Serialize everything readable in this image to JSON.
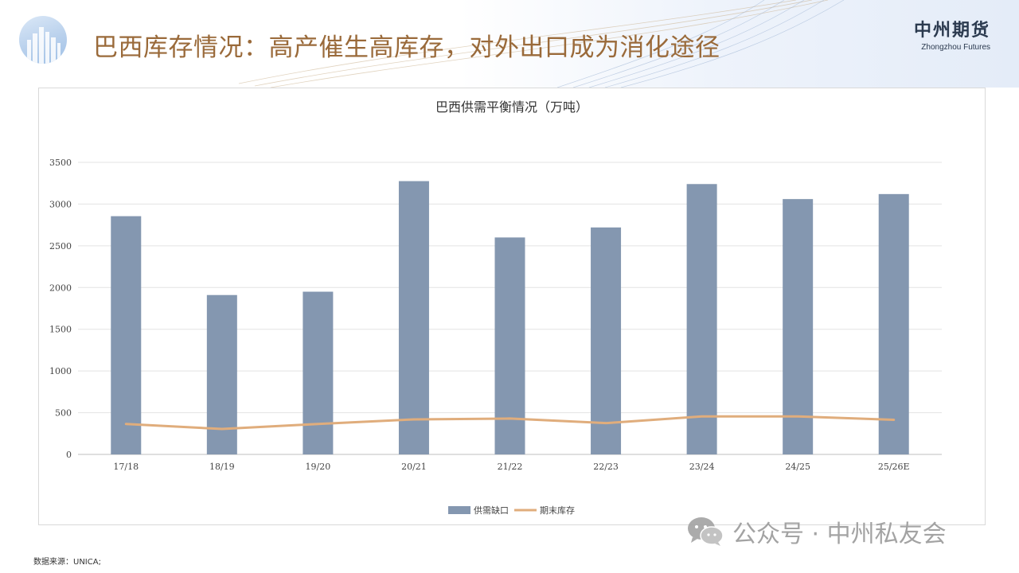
{
  "page": {
    "title": "巴西库存情况：高产催生高库存，对外出口成为消化途径",
    "brand_cn": "中州期货",
    "brand_en": "Zhongzhou Futures",
    "source": "数据来源：UNICA;",
    "watermark": "公众号 · 中州私友会",
    "watermark_icon": "wechat-icon"
  },
  "chart_data": {
    "type": "bar",
    "title": "巴西供需平衡情况（万吨）",
    "categories": [
      "17/18",
      "18/19",
      "19/20",
      "20/21",
      "21/22",
      "22/23",
      "23/24",
      "24/25",
      "25/26E"
    ],
    "series": [
      {
        "name": "供需缺口",
        "type": "bar",
        "color": "#8497b0",
        "values": [
          2855,
          1910,
          1950,
          3275,
          2600,
          2720,
          3240,
          3060,
          3120
        ]
      },
      {
        "name": "期末库存",
        "type": "line",
        "color": "#e0ad7c",
        "values": [
          365,
          305,
          365,
          420,
          430,
          375,
          455,
          455,
          415
        ]
      }
    ],
    "ylim": [
      0,
      3500
    ],
    "yticks": [
      0,
      500,
      1000,
      1500,
      2000,
      2500,
      3000,
      3500
    ],
    "grid": true,
    "legend": "bottom"
  }
}
